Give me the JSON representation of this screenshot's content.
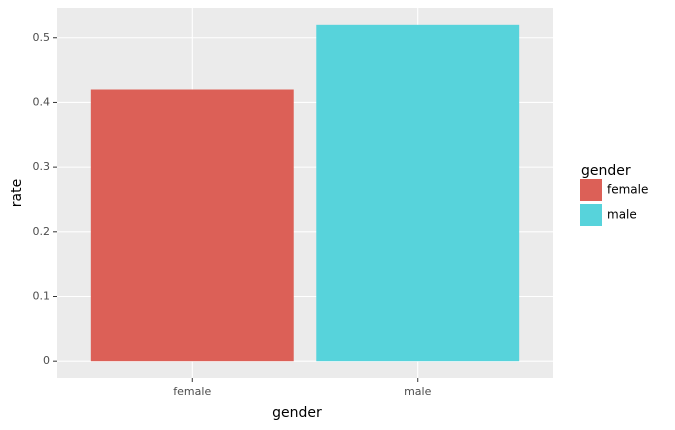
{
  "chart_data": {
    "type": "bar",
    "x_label": "gender",
    "y_label": "rate",
    "categories": [
      "female",
      "male"
    ],
    "values": [
      0.42,
      0.52
    ],
    "colors": [
      "#dc6057",
      "#57d3db"
    ],
    "legend_title": "gender",
    "legend": "right",
    "ylim": [
      -0.026,
      0.546
    ],
    "yticks": [
      0,
      0.1,
      0.2,
      0.3,
      0.4,
      0.5
    ],
    "grid": true
  }
}
